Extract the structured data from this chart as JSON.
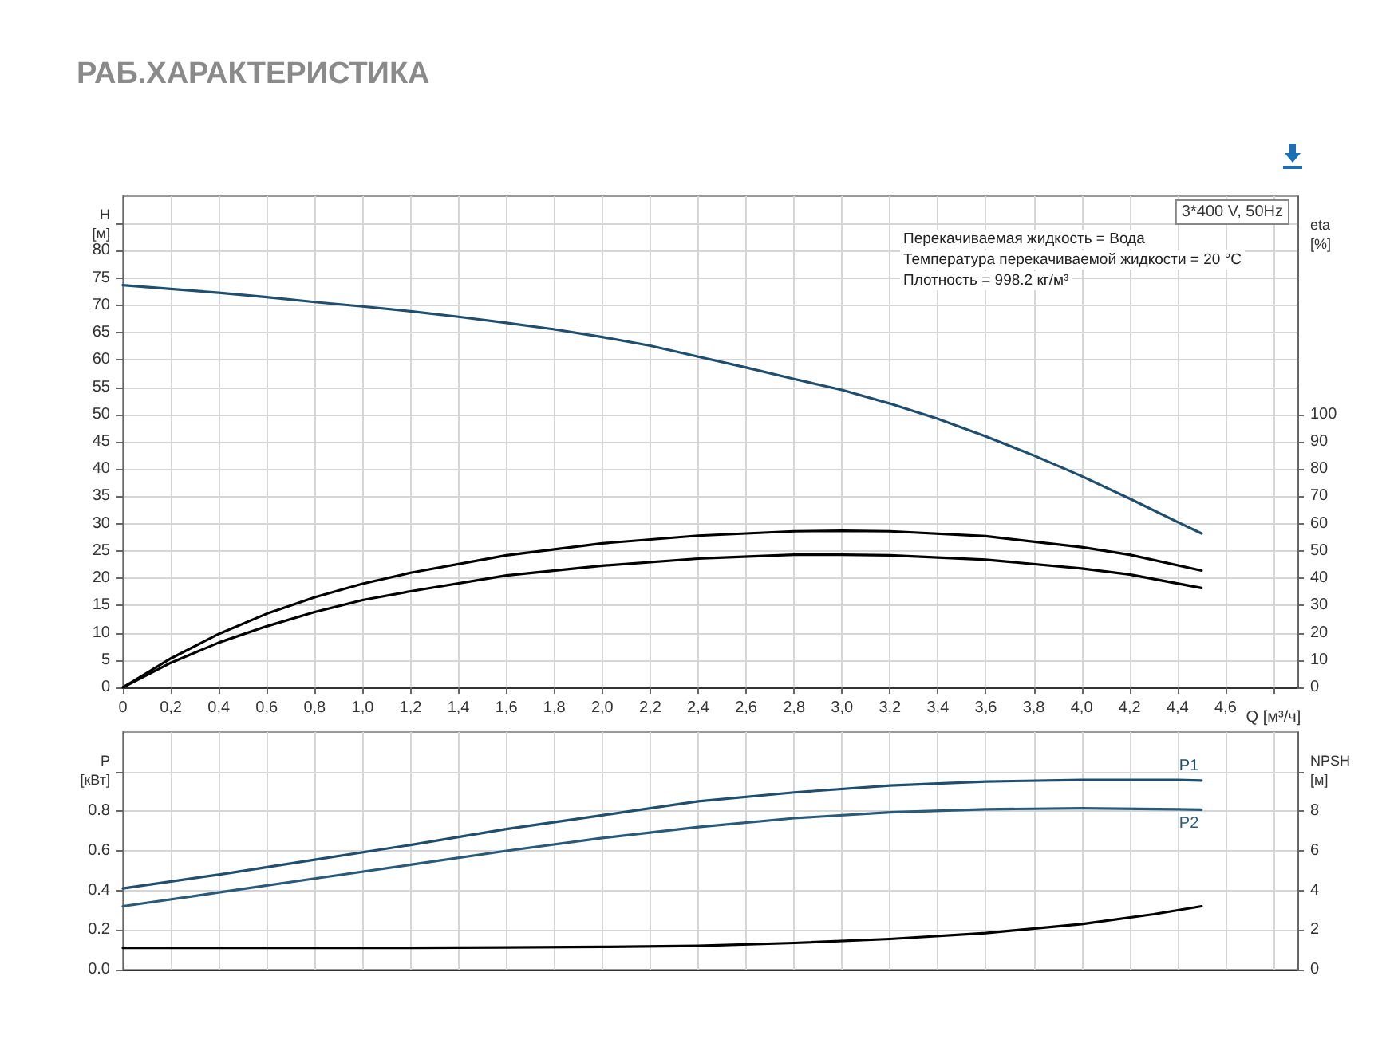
{
  "chart_data": [
    {
      "type": "line",
      "title": "РАБ.ХАРАКТЕРИСТИКА",
      "xlabel": "Q [м³/ч]",
      "ylabel": "H [м]",
      "y2label": "eta [%]",
      "annotations": [
        "3*400 V, 50Hz",
        "Перекачиваемая жидкость = Вода",
        "Температура перекачиваемой жидкости = 20 °C",
        "Плотность = 998.2 кг/м³"
      ],
      "series": [
        {
          "color": "#1f4e6e",
          "x": [
            0,
            0.2,
            0.4,
            0.6,
            0.8,
            1.0,
            1.2,
            1.4,
            1.6,
            1.8,
            2.0,
            2.2,
            2.4,
            2.6,
            2.8,
            3.0,
            3.2,
            3.4,
            3.6,
            3.8,
            4.0,
            4.2,
            4.4,
            4.5
          ],
          "values": [
            73.7,
            73.0,
            72.3,
            71.5,
            70.6,
            69.8,
            68.9,
            67.9,
            66.8,
            65.6,
            64.2,
            62.6,
            60.6,
            58.6,
            56.5,
            54.5,
            52.0,
            49.2,
            46.0,
            42.5,
            38.7,
            34.6,
            30.3,
            28.2
          ]
        },
        {
          "color": "#000000",
          "axis": "y2",
          "x": [
            0,
            0.2,
            0.4,
            0.6,
            0.8,
            1.0,
            1.2,
            1.6,
            2.0,
            2.4,
            2.8,
            3.0,
            3.2,
            3.6,
            4.0,
            4.2,
            4.5
          ],
          "values": [
            0,
            10.6,
            19.6,
            27,
            33,
            38,
            42,
            48.4,
            52.8,
            55.6,
            57.2,
            57.4,
            57.2,
            55.4,
            51.4,
            48.6,
            42.8
          ]
        },
        {
          "color": "#000000",
          "axis": "y2",
          "x": [
            0,
            0.2,
            0.4,
            0.6,
            0.8,
            1.0,
            1.2,
            1.6,
            2.0,
            2.4,
            2.8,
            3.0,
            3.2,
            3.6,
            4.0,
            4.2,
            4.5
          ],
          "values": [
            0,
            9,
            16.4,
            22.4,
            27.6,
            32,
            35.2,
            41,
            44.6,
            47.2,
            48.6,
            48.6,
            48.4,
            46.8,
            43.6,
            41.4,
            36.4
          ]
        }
      ],
      "xlim": [
        0,
        4.9
      ],
      "xticks": [
        0,
        {
          "value": 0.2,
          "label": "0,2"
        },
        {
          "value": 0.4,
          "label": "0,4"
        },
        {
          "value": 0.6,
          "label": "0,6"
        },
        {
          "value": 0.8,
          "label": "0,8"
        },
        {
          "value": 1.0,
          "label": "1,0"
        },
        {
          "value": 1.2,
          "label": "1,2"
        },
        {
          "value": 1.4,
          "label": "1,4"
        },
        {
          "value": 1.6,
          "label": "1,6"
        },
        {
          "value": 1.8,
          "label": "1,8"
        },
        {
          "value": 2.0,
          "label": "2,0"
        },
        {
          "value": 2.2,
          "label": "2,2"
        },
        {
          "value": 2.4,
          "label": "2,4"
        },
        {
          "value": 2.6,
          "label": "2,6"
        },
        {
          "value": 2.8,
          "label": "2,8"
        },
        {
          "value": 3.0,
          "label": "3,0"
        },
        {
          "value": 3.2,
          "label": "3,2"
        },
        {
          "value": 3.4,
          "label": "3,4"
        },
        {
          "value": 3.6,
          "label": "3,6"
        },
        {
          "value": 3.8,
          "label": "3,8"
        },
        {
          "value": 4.0,
          "label": "4,0"
        },
        {
          "value": 4.2,
          "label": "4,2"
        },
        {
          "value": 4.4,
          "label": "4,4"
        },
        {
          "value": 4.6,
          "label": "4,6"
        },
        {
          "value": 4.8,
          "label": null
        }
      ],
      "ylim": [
        0,
        90
      ],
      "yticks": [
        0,
        5,
        10,
        15,
        20,
        25,
        30,
        35,
        40,
        45,
        50,
        55,
        60,
        65,
        70,
        75,
        80,
        {
          "value": 85,
          "label": null
        }
      ],
      "y2lim": [
        0,
        180
      ],
      "y2ticks": [
        0,
        10,
        20,
        30,
        40,
        50,
        60,
        70,
        80,
        90,
        100
      ],
      "grid": true,
      "marker": "none",
      "line_style": "solid"
    },
    {
      "type": "line",
      "ylabel": "P [кВт]",
      "y2label": "NPSH [м]",
      "series": [
        {
          "name": "P1",
          "color": "#1f4e6e",
          "x": [
            0,
            0.4,
            0.8,
            1.2,
            1.6,
            2.0,
            2.4,
            2.8,
            3.2,
            3.6,
            4.0,
            4.4,
            4.5
          ],
          "values": [
            0.41,
            0.48,
            0.555,
            0.63,
            0.71,
            0.78,
            0.85,
            0.895,
            0.93,
            0.95,
            0.958,
            0.958,
            0.955
          ]
        },
        {
          "name": "P2",
          "color": "#2a5a7a",
          "x": [
            0,
            0.4,
            0.8,
            1.2,
            1.6,
            2.0,
            2.4,
            2.8,
            3.2,
            3.6,
            4.0,
            4.4,
            4.5
          ],
          "values": [
            0.32,
            0.39,
            0.46,
            0.53,
            0.6,
            0.665,
            0.72,
            0.765,
            0.795,
            0.81,
            0.815,
            0.81,
            0.808
          ]
        },
        {
          "color": "#000000",
          "axis": "y2",
          "x": [
            0,
            0.4,
            0.8,
            1.2,
            1.6,
            2.0,
            2.4,
            2.8,
            3.2,
            3.6,
            4.0,
            4.3,
            4.5
          ],
          "values": [
            1.1,
            1.1,
            1.1,
            1.1,
            1.12,
            1.15,
            1.2,
            1.35,
            1.55,
            1.85,
            2.3,
            2.8,
            3.2
          ]
        }
      ],
      "xlim": [
        0,
        4.9
      ],
      "xticks": [
        0,
        0.2,
        0.4,
        0.6,
        0.8,
        1.0,
        1.2,
        1.4,
        1.6,
        1.8,
        2.0,
        2.2,
        2.4,
        2.6,
        2.8,
        3.0,
        3.2,
        3.4,
        3.6,
        3.8,
        4.0,
        4.2,
        4.4,
        4.6,
        4.8
      ],
      "ylim": [
        0,
        1.2
      ],
      "yticks": [
        {
          "value": 0,
          "label": "0.0"
        },
        0.2,
        0.4,
        0.6,
        0.8,
        {
          "value": 1.0,
          "label": null
        }
      ],
      "y2lim": [
        0,
        12
      ],
      "y2ticks": [
        0,
        2,
        4,
        6,
        8,
        {
          "value": 10,
          "label": null
        }
      ],
      "tick_labels": "y",
      "grid": true,
      "marker": "none",
      "line_style": "solid"
    }
  ]
}
